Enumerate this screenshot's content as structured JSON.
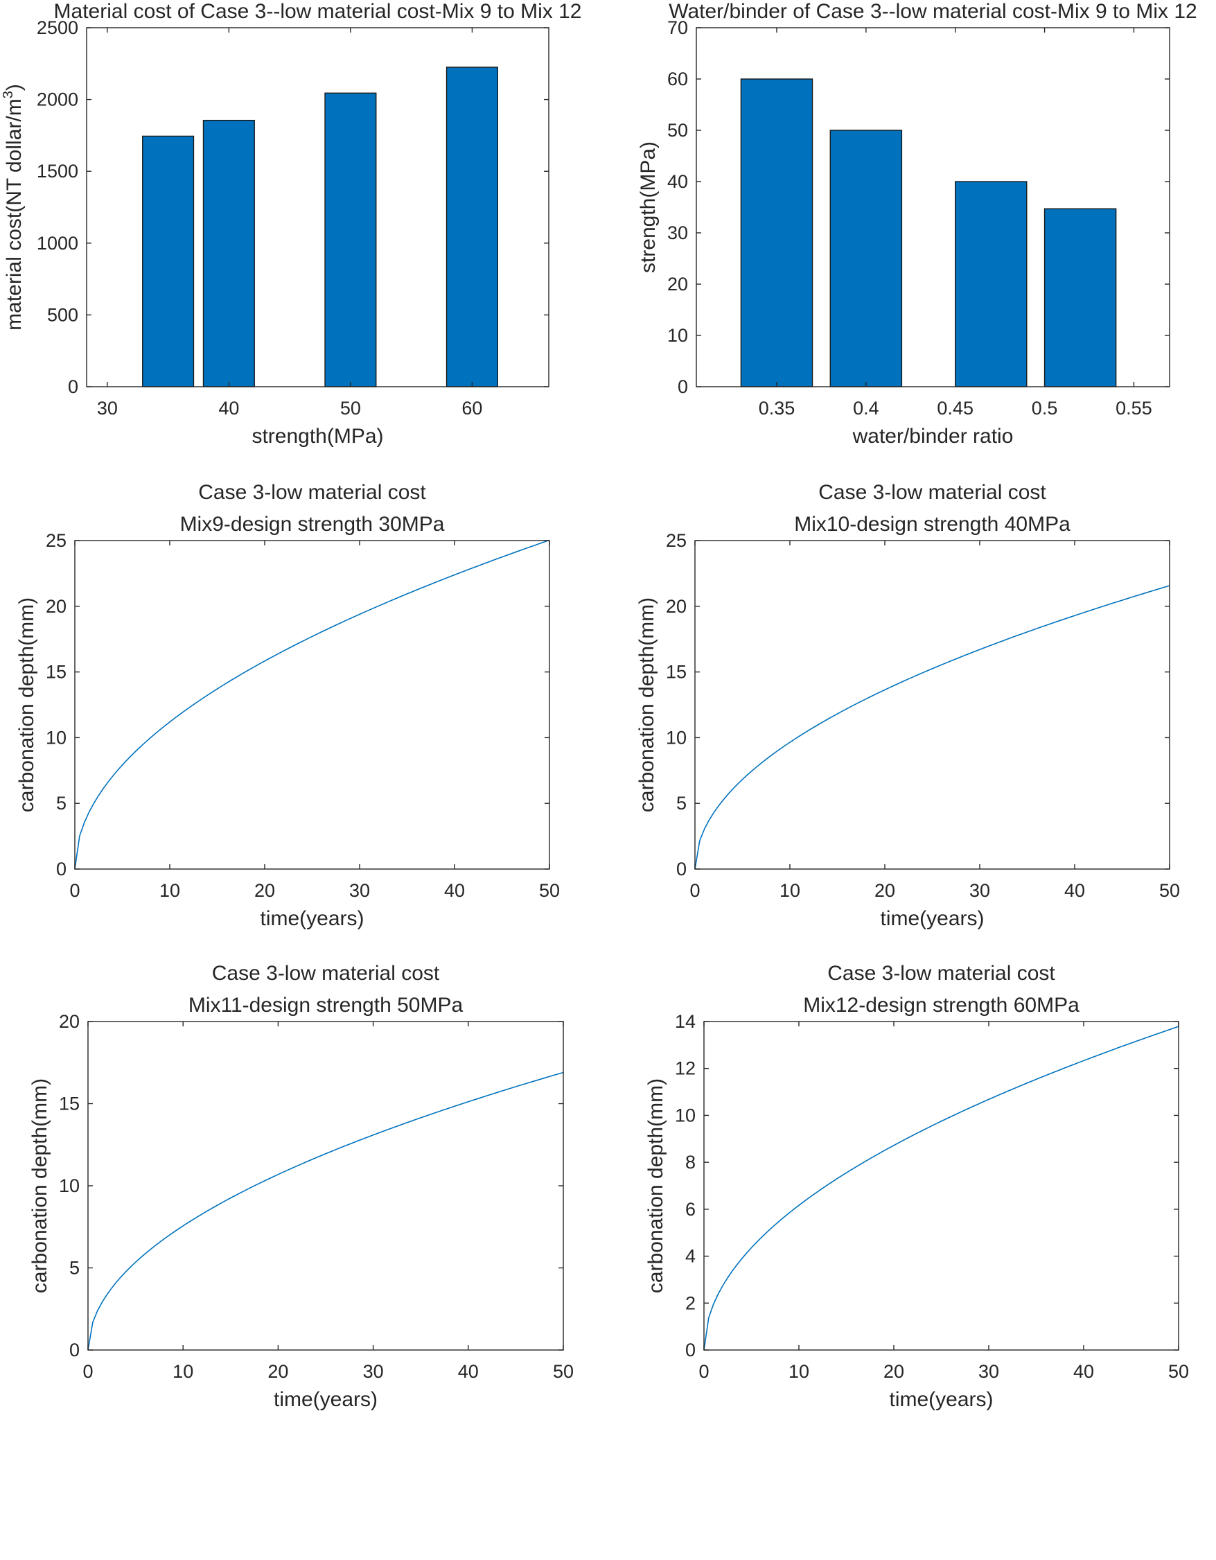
{
  "chart_data": [
    {
      "type": "bar",
      "title": [
        "Material cost of Case 3--low material cost-Mix 9 to Mix 12"
      ],
      "xlabel": "strength(MPa)",
      "ylabel": "material cost(NT dollar/m",
      "ylabel_superscript": "3",
      "ylabel_suffix": ")",
      "x": [
        35,
        40,
        50,
        60
      ],
      "values": [
        1745,
        1855,
        2045,
        2225
      ],
      "bar_width": 4.2,
      "xlim": [
        28.3,
        66.3
      ],
      "ylim": [
        0,
        2500
      ],
      "xticks": [
        30,
        40,
        50,
        60
      ],
      "yticks": [
        0,
        500,
        1000,
        1500,
        2000,
        2500
      ],
      "grid": false
    },
    {
      "type": "bar",
      "title": [
        "Water/binder of Case 3--low material cost-Mix 9 to Mix 12"
      ],
      "xlabel": "water/binder ratio",
      "ylabel": "strength(MPa)",
      "x": [
        0.35,
        0.4,
        0.47,
        0.52
      ],
      "values": [
        60,
        50,
        40,
        34.7
      ],
      "bar_width": 0.04,
      "xlim": [
        0.305,
        0.57
      ],
      "ylim": [
        0,
        70
      ],
      "xticks": [
        0.35,
        0.4,
        0.45,
        0.5,
        0.55
      ],
      "xticklabels": [
        "0.35",
        "0.4",
        "0.45",
        "0.5",
        "0.55"
      ],
      "yticks": [
        0,
        10,
        20,
        30,
        40,
        50,
        60,
        70
      ],
      "grid": false
    },
    {
      "type": "line",
      "title": [
        "Case 3-low material cost",
        "Mix9-design strength 30MPa"
      ],
      "xlabel": "time(years)",
      "ylabel": "carbonation depth(mm)",
      "xlim": [
        0,
        50
      ],
      "ylim": [
        0,
        25
      ],
      "xticks": [
        0,
        10,
        20,
        30,
        40,
        50
      ],
      "yticks": [
        0,
        5,
        10,
        15,
        20,
        25
      ],
      "series": [
        {
          "name": "Mix9",
          "x_start": 0,
          "x_end": 50,
          "x_step": 0.5,
          "k": 3.54,
          "model": "k*sqrt(t)"
        }
      ],
      "grid": false
    },
    {
      "type": "line",
      "title": [
        "Case 3-low material cost",
        "Mix10-design strength 40MPa"
      ],
      "xlabel": "time(years)",
      "ylabel": "carbonation depth(mm)",
      "xlim": [
        0,
        50
      ],
      "ylim": [
        0,
        25
      ],
      "xticks": [
        0,
        10,
        20,
        30,
        40,
        50
      ],
      "yticks": [
        0,
        5,
        10,
        15,
        20,
        25
      ],
      "series": [
        {
          "name": "Mix10",
          "x_start": 0,
          "x_end": 50,
          "x_step": 0.5,
          "k": 3.05,
          "model": "k*sqrt(t)"
        }
      ],
      "grid": false
    },
    {
      "type": "line",
      "title": [
        "Case 3-low material cost",
        "Mix11-design strength 50MPa"
      ],
      "xlabel": "time(years)",
      "ylabel": "carbonation depth(mm)",
      "xlim": [
        0,
        50
      ],
      "ylim": [
        0,
        20
      ],
      "xticks": [
        0,
        10,
        20,
        30,
        40,
        50
      ],
      "yticks": [
        0,
        5,
        10,
        15,
        20
      ],
      "series": [
        {
          "name": "Mix11",
          "x_start": 0,
          "x_end": 50,
          "x_step": 0.5,
          "k": 2.39,
          "model": "k*sqrt(t)"
        }
      ],
      "grid": false
    },
    {
      "type": "line",
      "title": [
        "Case 3-low material cost",
        "Mix12-design strength 60MPa"
      ],
      "xlabel": "time(years)",
      "ylabel": "carbonation depth(mm)",
      "xlim": [
        0,
        50
      ],
      "ylim": [
        0,
        14
      ],
      "xticks": [
        0,
        10,
        20,
        30,
        40,
        50
      ],
      "yticks": [
        0,
        2,
        4,
        6,
        8,
        10,
        12,
        14
      ],
      "series": [
        {
          "name": "Mix12",
          "x_start": 0,
          "x_end": 50,
          "x_step": 0.5,
          "k": 1.95,
          "model": "k*sqrt(t)"
        }
      ],
      "grid": false
    }
  ]
}
